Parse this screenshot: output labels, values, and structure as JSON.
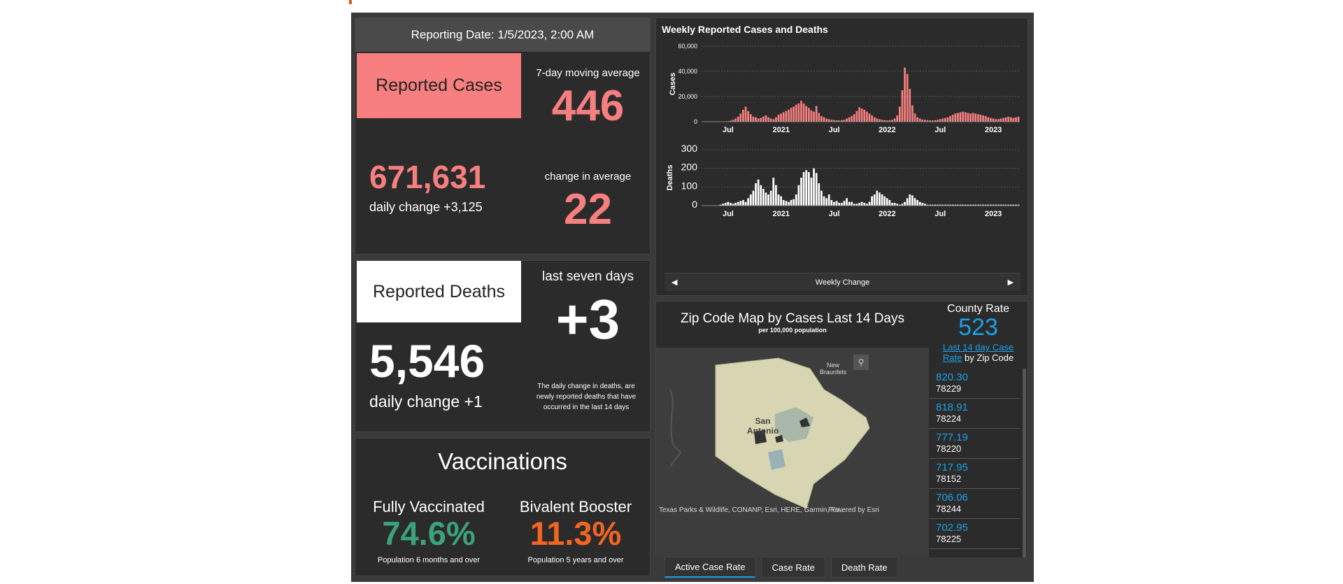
{
  "reporting_date": "Reporting Date: 1/5/2023, 2:00 AM",
  "cases": {
    "label": "Reported Cases",
    "moving_avg_label": "7-day moving average",
    "moving_avg_value": "446",
    "total": "671,631",
    "daily_change": "daily change +3,125",
    "change_avg_label": "change in average",
    "change_avg_value": "22"
  },
  "deaths": {
    "label": "Reported Deaths",
    "last_seven_label": "last seven days",
    "last_seven_value": "+3",
    "total": "5,546",
    "daily_change": "daily change +1",
    "note": "The daily change in deaths, are newly reported deaths that have occurred in the last 14 days"
  },
  "vaccinations": {
    "title": "Vaccinations",
    "fully_label": "Fully Vaccinated",
    "fully_value": "74.6%",
    "fully_sub": "Population 6 months and over",
    "booster_label": "Bivalent Booster",
    "booster_value": "11.3%",
    "booster_sub": "Population 5 years and over"
  },
  "chart_title": "Weekly Reported Cases and Deaths",
  "nav_label": "Weekly Change",
  "chart_data": [
    {
      "type": "bar",
      "title": "",
      "ylabel": "Cases",
      "xlabel": "",
      "ylim": [
        0,
        60000
      ],
      "yticks": [
        "0",
        "20,000",
        "40,000",
        "60,000"
      ],
      "xticks": [
        "Jul",
        "2021",
        "Jul",
        "2022",
        "Jul",
        "2023"
      ],
      "color": "#f77f7f",
      "values": [
        0,
        0,
        0,
        0,
        0,
        0,
        0,
        0,
        0,
        200,
        400,
        800,
        1500,
        2500,
        4000,
        6500,
        9500,
        12000,
        8500,
        6000,
        4000,
        3500,
        2500,
        3000,
        4000,
        5000,
        3500,
        2500,
        2000,
        3500,
        5500,
        6500,
        7500,
        8500,
        9500,
        11000,
        12000,
        13500,
        14500,
        16500,
        14500,
        12500,
        11000,
        9000,
        8000,
        12500,
        7000,
        4500,
        3500,
        2500,
        2000,
        1500,
        1300,
        1100,
        1000,
        1200,
        1500,
        2500,
        3500,
        4500,
        6000,
        8500,
        11500,
        10500,
        9500,
        8000,
        6500,
        5000,
        3500,
        2500,
        2000,
        1500,
        1200,
        1000,
        1200,
        1500,
        2500,
        5000,
        12000,
        25000,
        43000,
        38000,
        26000,
        13000,
        6500,
        3500,
        2500,
        1800,
        1500,
        1200,
        1000,
        1000,
        1200,
        1500,
        2000,
        2500,
        3000,
        3500,
        4500,
        5500,
        6500,
        7000,
        7500,
        8000,
        7500,
        7000,
        6500,
        7000,
        6500,
        6000,
        5500,
        5000,
        4500,
        3500,
        3000,
        2500,
        2000,
        2000,
        2500,
        3000,
        3500,
        4000,
        3500,
        3000,
        3500,
        4000
      ]
    },
    {
      "type": "bar",
      "title": "",
      "ylabel": "Deaths",
      "xlabel": "",
      "ylim": [
        0,
        300
      ],
      "yticks": [
        "0",
        "100",
        "200",
        "300"
      ],
      "xticks": [
        "Jul",
        "2021",
        "Jul",
        "2022",
        "Jul",
        "2023"
      ],
      "color": "#ffffff",
      "values": [
        0,
        0,
        0,
        0,
        0,
        0,
        2,
        5,
        10,
        15,
        20,
        15,
        10,
        15,
        20,
        25,
        30,
        20,
        40,
        60,
        80,
        120,
        140,
        110,
        90,
        70,
        60,
        80,
        150,
        110,
        60,
        50,
        30,
        25,
        20,
        30,
        35,
        60,
        110,
        150,
        180,
        190,
        180,
        150,
        200,
        175,
        120,
        80,
        50,
        40,
        60,
        30,
        20,
        25,
        15,
        15,
        25,
        40,
        20,
        20,
        10,
        10,
        15,
        20,
        15,
        10,
        20,
        50,
        60,
        80,
        70,
        60,
        50,
        40,
        30,
        15,
        15,
        10,
        5,
        10,
        20,
        40,
        60,
        55,
        40,
        30,
        20,
        15,
        10,
        5,
        5,
        5,
        5,
        5,
        5,
        5,
        5,
        5,
        5,
        5,
        5,
        5,
        5,
        5,
        5,
        5,
        5,
        5,
        5,
        5,
        5,
        5,
        5,
        5,
        5,
        5,
        5,
        5,
        5,
        5,
        5,
        5,
        5,
        5,
        5,
        5
      ]
    }
  ],
  "map": {
    "title": "Zip Code Map by Cases Last 14 Days",
    "subtitle": "per 100,000 population",
    "place_new_braunfels": "New Braunfels",
    "place_san_antonio": "San Antonio",
    "attribution": "Texas Parks & Wildlife, CONANP, Esri, HERE, Garmin, Fo...",
    "powered_by": "Powered by Esri"
  },
  "county_rate": {
    "label": "County Rate",
    "value": "523",
    "link_text": "Last 14 day Case Rate",
    "suffix": " by Zip Code"
  },
  "zip_rates": [
    {
      "rate": "820.30",
      "zip": "78229"
    },
    {
      "rate": "818.91",
      "zip": "78224"
    },
    {
      "rate": "777.19",
      "zip": "78220"
    },
    {
      "rate": "717.95",
      "zip": "78152"
    },
    {
      "rate": "706.06",
      "zip": "78244"
    },
    {
      "rate": "702.95",
      "zip": "78225"
    }
  ],
  "tabs": [
    "Active Case Rate",
    "Case Rate",
    "Death Rate"
  ],
  "colors": {
    "cases": "#f77f7f",
    "link": "#1aa0e6",
    "vax": "#3aa37b",
    "booster": "#f26522"
  },
  "icons": [
    "search-icon",
    "chevron-left-icon",
    "chevron-right-icon"
  ]
}
